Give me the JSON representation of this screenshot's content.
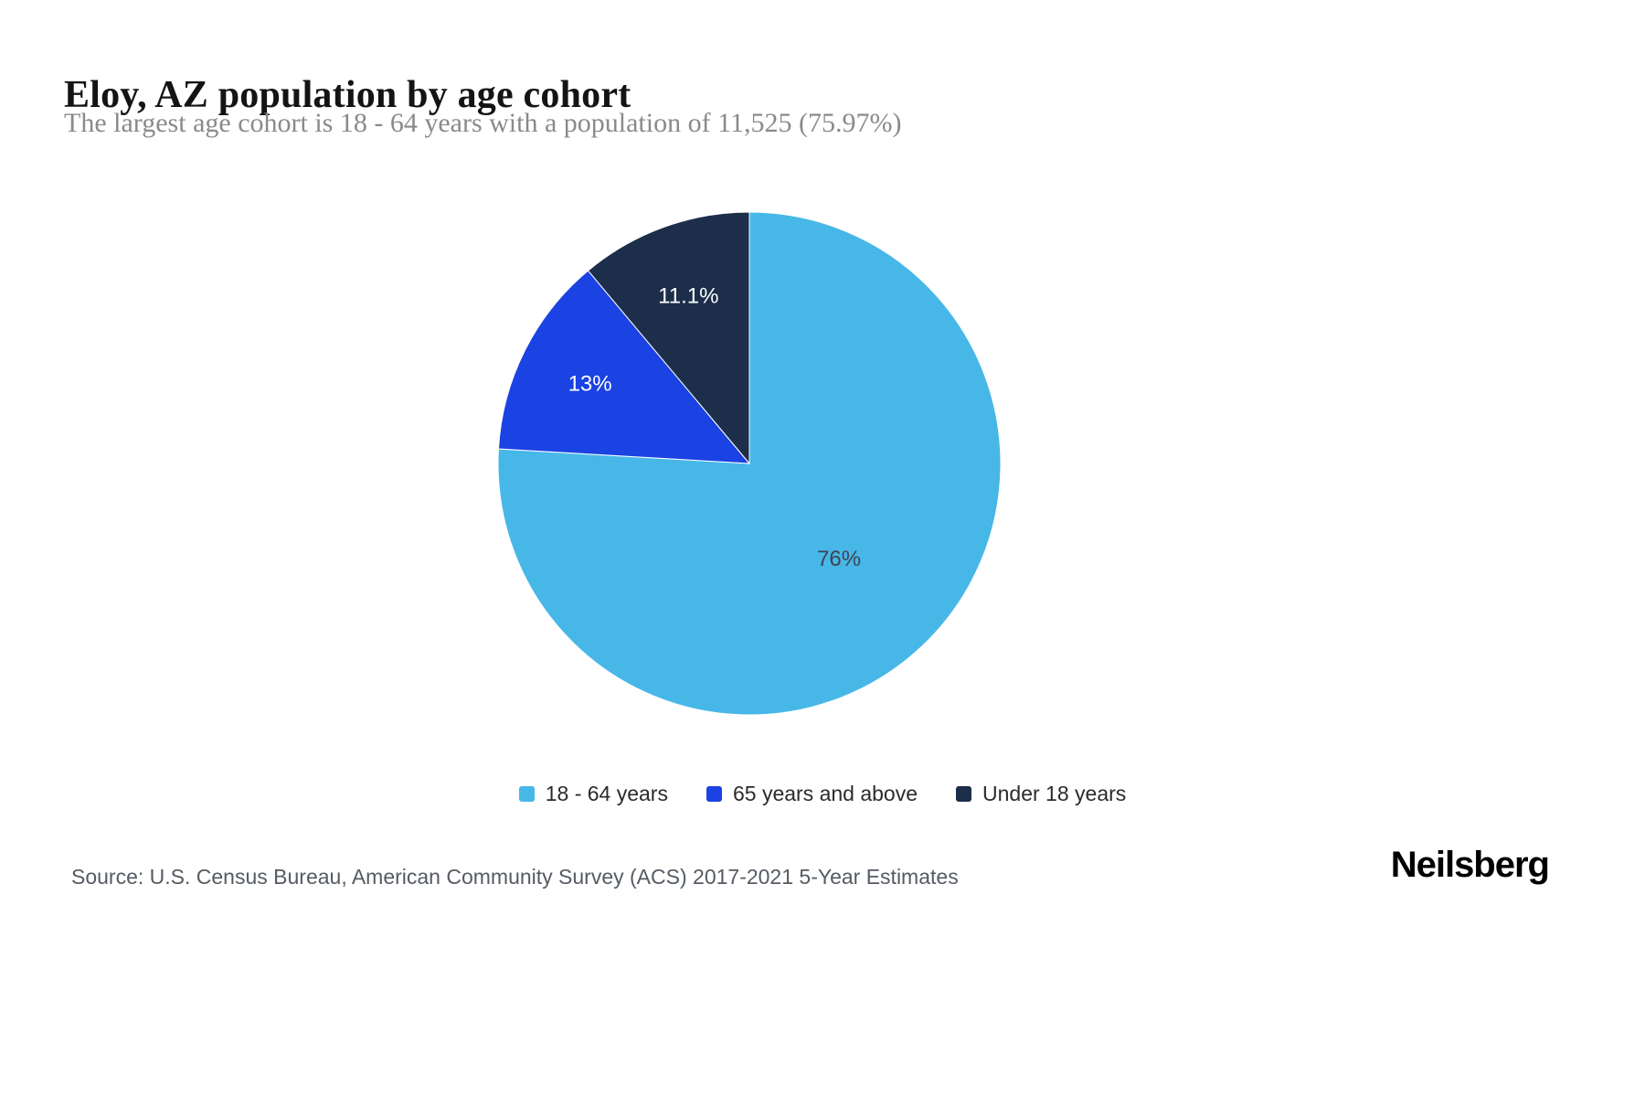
{
  "header": {
    "title": "Eloy, AZ population by age cohort",
    "subtitle": "The largest age cohort is 18 - 64 years with a population of 11,525 (75.97%)"
  },
  "chart_data": {
    "type": "pie",
    "title": "Eloy, AZ population by age cohort",
    "direction": "clockwise",
    "start_angle_deg": 0,
    "legend_position": "bottom",
    "slices": [
      {
        "label": "18 - 64 years",
        "value": 76,
        "display": "76%",
        "color": "#47b7e8",
        "text_color": "#3c4451",
        "population": 11525,
        "population_pct": "75.97%"
      },
      {
        "label": "65 years and above",
        "value": 13,
        "display": "13%",
        "color": "#1b42e2",
        "text_color": "#ffffff"
      },
      {
        "label": "Under 18 years",
        "value": 11.1,
        "display": "11.1%",
        "color": "#1c2e4a",
        "text_color": "#ffffff"
      }
    ]
  },
  "footer": {
    "source": "Source: U.S. Census Bureau, American Community Survey (ACS) 2017-2021 5-Year Estimates",
    "brand": "Neilsberg"
  }
}
